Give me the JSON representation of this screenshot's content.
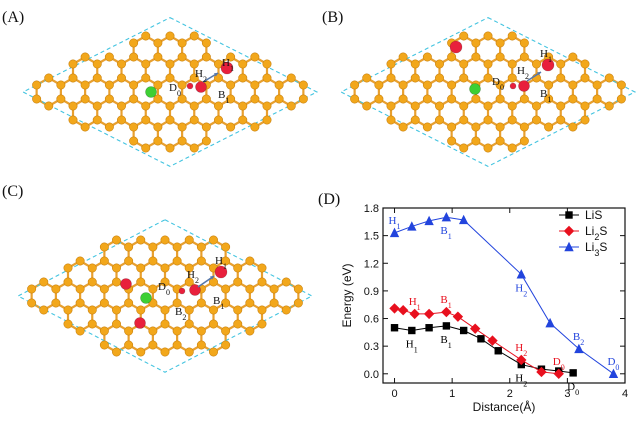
{
  "panels": {
    "a": {
      "label": "(A)",
      "sites": [
        {
          "name": "H",
          "sub": "1"
        },
        {
          "name": "H",
          "sub": "2"
        },
        {
          "name": "D",
          "sub": "0"
        },
        {
          "name": "B",
          "sub": "1"
        }
      ]
    },
    "b": {
      "label": "(B)",
      "sites": [
        {
          "name": "H",
          "sub": "1"
        },
        {
          "name": "H",
          "sub": "2"
        },
        {
          "name": "D",
          "sub": "0"
        },
        {
          "name": "B",
          "sub": "1"
        }
      ]
    },
    "c": {
      "label": "(C)",
      "sites": [
        {
          "name": "H",
          "sub": "1"
        },
        {
          "name": "H",
          "sub": "2"
        },
        {
          "name": "D",
          "sub": "0"
        },
        {
          "name": "B",
          "sub": "1"
        },
        {
          "name": "B",
          "sub": "2"
        }
      ]
    },
    "d": {
      "label": "(D)"
    }
  },
  "colors": {
    "atom": "#f2a71b",
    "atom_edge": "#c98210",
    "bond": "#e8a030",
    "cell": "#43c4e0",
    "li": "#e8203c",
    "center": "#3dcf34",
    "arrow": "#5577aa"
  },
  "chart_data": {
    "type": "line",
    "xlabel": "Distance(Å)",
    "ylabel": "Energy (eV)",
    "xlim": [
      -0.2,
      4.0
    ],
    "ylim": [
      -0.1,
      1.8
    ],
    "xticks": [
      "0",
      "1",
      "2",
      "3",
      "4"
    ],
    "yticks": [
      "0.0",
      "0.3",
      "0.6",
      "0.9",
      "1.2",
      "1.5",
      "1.8"
    ],
    "legend_position": "top-right",
    "series": [
      {
        "name": "LiS",
        "name_base": "LiS",
        "name_sub": "",
        "name_tail": "",
        "color": "#000000",
        "marker": "square",
        "x": [
          0.0,
          0.3,
          0.6,
          0.9,
          1.2,
          1.5,
          1.8,
          2.2,
          2.55,
          2.85,
          3.1
        ],
        "y": [
          0.5,
          0.47,
          0.5,
          0.52,
          0.47,
          0.38,
          0.25,
          0.1,
          0.05,
          0.03,
          0.01
        ]
      },
      {
        "name": "Li2S",
        "name_base": "Li",
        "name_sub": "2",
        "name_tail": "S",
        "color": "#e8101e",
        "marker": "diamond",
        "x": [
          0.0,
          0.15,
          0.35,
          0.6,
          0.9,
          1.1,
          1.4,
          1.7,
          2.2,
          2.55,
          2.85
        ],
        "y": [
          0.71,
          0.69,
          0.65,
          0.65,
          0.67,
          0.62,
          0.49,
          0.36,
          0.15,
          0.02,
          0.0
        ]
      },
      {
        "name": "Li3S",
        "name_base": "Li",
        "name_sub": "3",
        "name_tail": "S",
        "color": "#2244dd",
        "marker": "triangle",
        "x": [
          0.0,
          0.3,
          0.6,
          0.9,
          1.2,
          2.2,
          2.7,
          3.2,
          3.8
        ],
        "y": [
          1.53,
          1.6,
          1.66,
          1.7,
          1.67,
          1.08,
          0.55,
          0.27,
          0.0
        ]
      }
    ],
    "annotations": [
      {
        "name": "H",
        "sub": "1",
        "x": 0.0,
        "y": 1.53,
        "color": "#2244dd",
        "pos": "above"
      },
      {
        "name": "B",
        "sub": "1",
        "x": 0.9,
        "y": 1.7,
        "color": "#2244dd",
        "pos": "below"
      },
      {
        "name": "H",
        "sub": "2",
        "x": 2.2,
        "y": 1.08,
        "color": "#2244dd",
        "pos": "below"
      },
      {
        "name": "B",
        "sub": "2",
        "x": 3.2,
        "y": 0.27,
        "color": "#2244dd",
        "pos": "above"
      },
      {
        "name": "D",
        "sub": "0",
        "x": 3.8,
        "y": 0.0,
        "color": "#2244dd",
        "pos": "above"
      },
      {
        "name": "H",
        "sub": "1",
        "x": 0.35,
        "y": 0.65,
        "color": "#e8101e",
        "pos": "above"
      },
      {
        "name": "B",
        "sub": "1",
        "x": 0.9,
        "y": 0.67,
        "color": "#e8101e",
        "pos": "above"
      },
      {
        "name": "H",
        "sub": "2",
        "x": 2.2,
        "y": 0.15,
        "color": "#e8101e",
        "pos": "above"
      },
      {
        "name": "D",
        "sub": "0",
        "x": 2.85,
        "y": 0.0,
        "color": "#e8101e",
        "pos": "above"
      },
      {
        "name": "H",
        "sub": "1",
        "x": 0.3,
        "y": 0.47,
        "color": "#000000",
        "pos": "below"
      },
      {
        "name": "B",
        "sub": "1",
        "x": 0.9,
        "y": 0.52,
        "color": "#000000",
        "pos": "below"
      },
      {
        "name": "H",
        "sub": "2",
        "x": 2.2,
        "y": 0.1,
        "color": "#000000",
        "pos": "below"
      },
      {
        "name": "D",
        "sub": "0",
        "x": 3.1,
        "y": 0.01,
        "color": "#000000",
        "pos": "below"
      }
    ]
  }
}
